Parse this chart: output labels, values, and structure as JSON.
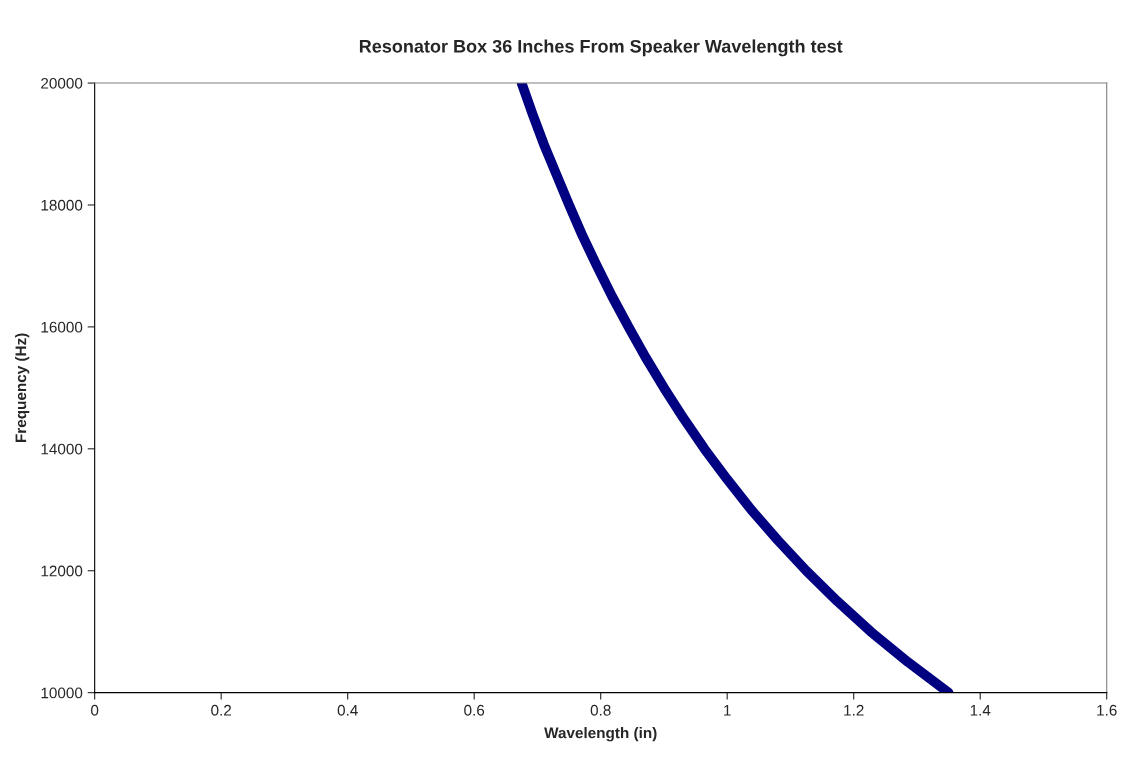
{
  "chart_data": {
    "type": "line",
    "title": "Resonator Box 36 Inches From Speaker Wavelength test",
    "xlabel": "Wavelength (in)",
    "ylabel": "Frequency (Hz)",
    "x": [
      0.675,
      0.692,
      0.71,
      0.73,
      0.75,
      0.771,
      0.794,
      0.818,
      0.844,
      0.871,
      0.9,
      0.931,
      0.964,
      1.0,
      1.038,
      1.08,
      1.125,
      1.174,
      1.227,
      1.286,
      1.35
    ],
    "series": [
      {
        "color": "#000080",
        "values": [
          20000,
          19500,
          19000,
          18500,
          18000,
          17500,
          17000,
          16500,
          16000,
          15500,
          15000,
          14500,
          14000,
          13500,
          13000,
          12500,
          12000,
          11500,
          11000,
          10500,
          10000
        ]
      }
    ],
    "xlim": [
      0,
      1.6
    ],
    "xticks": [
      0,
      0.2,
      0.4,
      0.6,
      0.8,
      1,
      1.2,
      1.4,
      1.6
    ],
    "ylim": [
      10000,
      20000
    ],
    "yticks": [
      10000,
      12000,
      14000,
      16000,
      18000,
      20000
    ],
    "marker": "none",
    "line_style": "solid"
  }
}
